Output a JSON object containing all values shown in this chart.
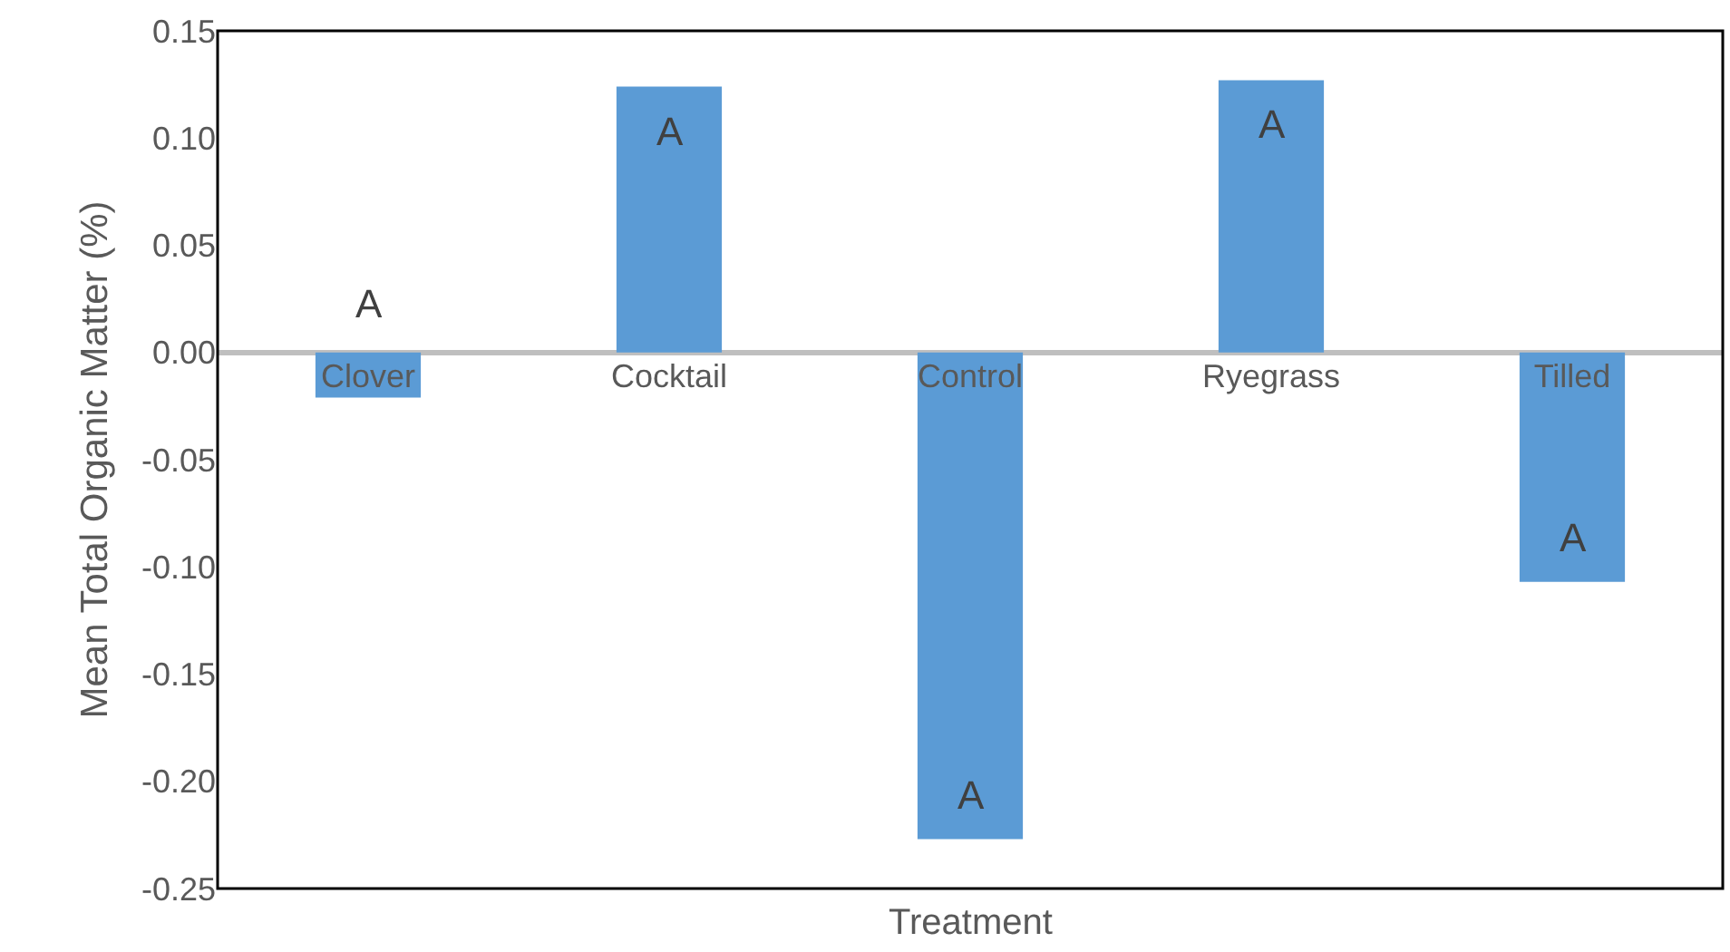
{
  "chart_data": {
    "type": "bar",
    "xlabel": "Treatment",
    "ylabel": "Mean Total Organic Matter (%)",
    "categories": [
      "Clover",
      "Cocktail",
      "Control",
      "Ryegrass",
      "Tilled"
    ],
    "values": [
      -0.021,
      0.124,
      -0.227,
      0.127,
      -0.107
    ],
    "color": "#5b9bd5",
    "ylim": [
      -0.25,
      0.15
    ],
    "yticks": [
      {
        "value": -0.25,
        "label": "-0.25"
      },
      {
        "value": -0.2,
        "label": "-0.20"
      },
      {
        "value": -0.15,
        "label": "-0.15"
      },
      {
        "value": -0.1,
        "label": "-0.10"
      },
      {
        "value": -0.05,
        "label": "-0.05"
      },
      {
        "value": 0,
        "label": "0.00"
      },
      {
        "value": 0.05,
        "label": "0.05"
      },
      {
        "value": 0.1,
        "label": "0.10"
      },
      {
        "value": 0.15,
        "label": "0.15"
      }
    ],
    "grid": false,
    "legend": false,
    "annotations": [
      "A",
      "A",
      "A",
      "A",
      "A"
    ]
  }
}
